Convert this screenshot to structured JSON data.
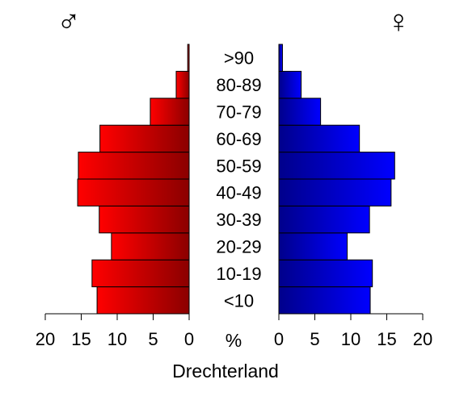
{
  "chart_data": {
    "type": "bar",
    "orientation": "horizontal",
    "layout": "population-pyramid",
    "title": "Drechterland",
    "categories": [
      "<10",
      "10-19",
      "20-29",
      "30-39",
      "40-49",
      "50-59",
      "60-69",
      "70-79",
      "80-89",
      ">90"
    ],
    "series": [
      {
        "symbol": "♂",
        "side": "left",
        "color": "#ff0000",
        "color_dark": "#8b0000",
        "values": [
          12.8,
          13.5,
          10.8,
          12.5,
          15.5,
          15.4,
          12.4,
          5.4,
          1.8,
          0.2
        ]
      },
      {
        "symbol": "♀",
        "side": "right",
        "color": "#0000ff",
        "color_dark": "#00008b",
        "values": [
          12.7,
          13.0,
          9.5,
          12.6,
          15.6,
          16.1,
          11.2,
          5.8,
          3.1,
          0.5
        ]
      }
    ],
    "x_axis": {
      "unit_label": "%",
      "range": [
        0,
        20
      ],
      "tick_labels": [
        "0",
        "5",
        "10",
        "15",
        "20"
      ]
    }
  }
}
